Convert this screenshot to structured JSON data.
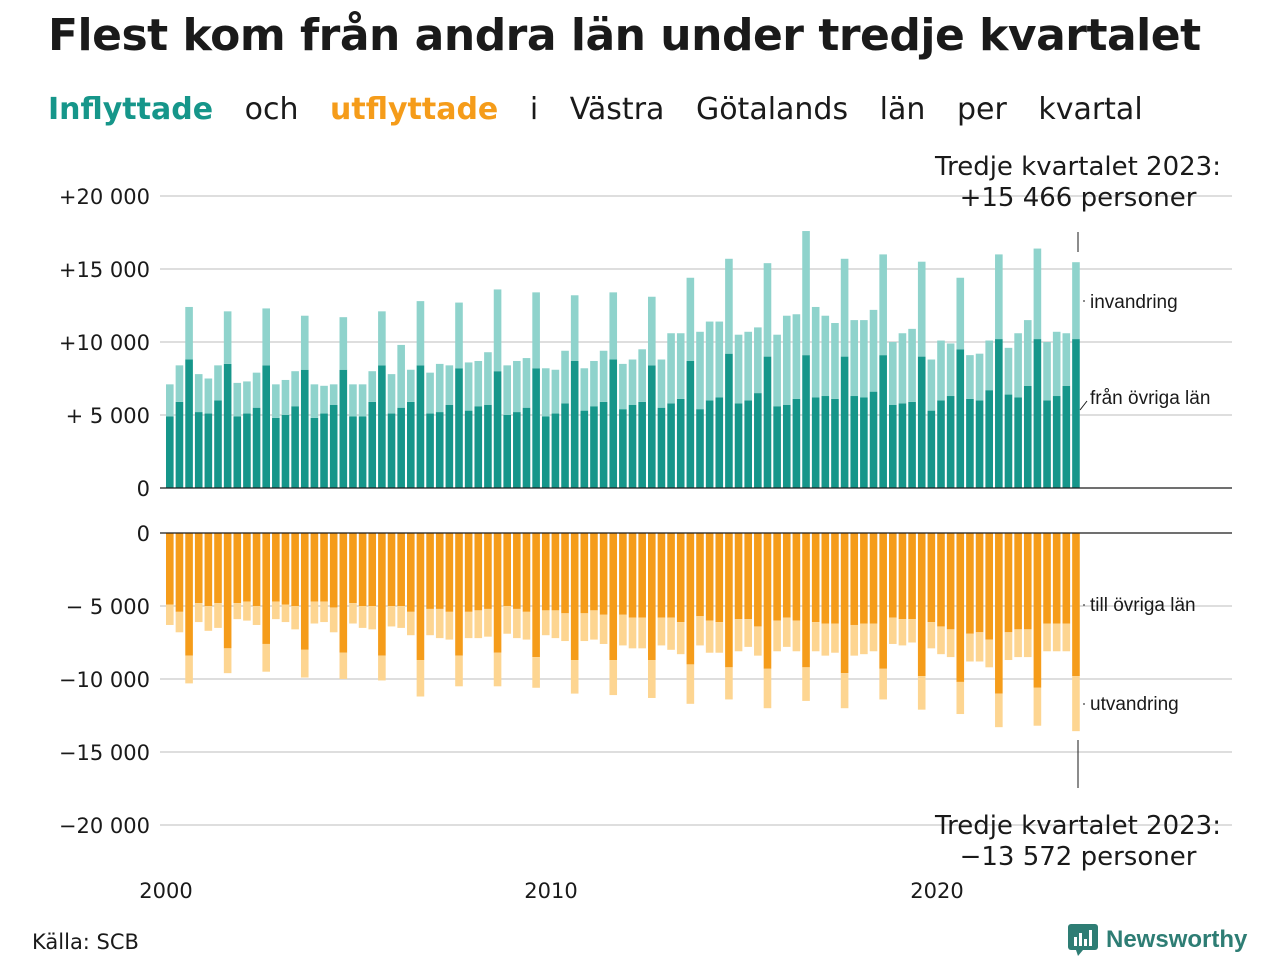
{
  "title": "Flest kom från andra län under tredje kvartalet",
  "subtitle": {
    "in_word": "Inflyttade",
    "mid1": "och",
    "out_word": "utflyttade",
    "rest": [
      "i",
      "Västra",
      "Götalands",
      "län",
      "per",
      "kvartal"
    ]
  },
  "source": "Källa: SCB",
  "brand": "Newsworthy",
  "colors": {
    "in_dark": "#16968a",
    "in_light": "#8fd3cc",
    "out_dark": "#f59c1a",
    "out_light": "#fdd591"
  },
  "annotations": {
    "top_line1": "Tredje kvartalet 2023:",
    "top_line2": "+15 466 personer",
    "bottom_line1": "Tredje kvartalet 2023:",
    "bottom_line2": "−13 572 personer",
    "invandring": "invandring",
    "fran_ovriga_lan": "från övriga län",
    "till_ovriga_lan": "till övriga län",
    "utvandring": "utvandring"
  },
  "chart_data": {
    "type": "bar",
    "x_start": "2000 Q1",
    "x_ticks": [
      "2000",
      "2010",
      "2020"
    ],
    "top": {
      "yticks": [
        "+20 000",
        "+15 000",
        "+10 000",
        "+ 5 000",
        "0"
      ],
      "ylim": [
        0,
        20000
      ],
      "series": [
        {
          "name": "från övriga län",
          "values": [
            4900,
            5900,
            8800,
            5200,
            5100,
            6000,
            8500,
            4900,
            5100,
            5500,
            8400,
            4800,
            5000,
            5600,
            8100,
            4800,
            5100,
            5700,
            8100,
            4900,
            4900,
            5900,
            8400,
            5100,
            5500,
            5900,
            8400,
            5100,
            5200,
            5700,
            8200,
            5300,
            5600,
            5700,
            8000,
            5000,
            5200,
            5500,
            8200,
            4900,
            5100,
            5800,
            8700,
            5300,
            5600,
            5900,
            8800,
            5400,
            5700,
            5900,
            8400,
            5500,
            5800,
            6100,
            8700,
            5400,
            6000,
            6200,
            9200,
            5800,
            6000,
            6500,
            9000,
            5600,
            5700,
            6100,
            9100,
            6200,
            6300,
            6100,
            9000,
            6300,
            6200,
            6600,
            9100,
            5700,
            5800,
            5900,
            9000,
            5300,
            6000,
            6300,
            9500,
            6100,
            6000,
            6700,
            10200,
            6400,
            6200,
            7000,
            10200,
            6000,
            6300,
            7000,
            10200
          ]
        },
        {
          "name": "invandring",
          "values": [
            2200,
            2500,
            3600,
            2600,
            2400,
            2400,
            3600,
            2300,
            2200,
            2400,
            3900,
            2300,
            2400,
            2400,
            3700,
            2300,
            1900,
            1400,
            3600,
            2200,
            2200,
            2100,
            3700,
            2700,
            4300,
            2200,
            4400,
            2800,
            3300,
            2700,
            4500,
            3300,
            3100,
            3600,
            5600,
            3400,
            3500,
            3400,
            5200,
            3300,
            3000,
            3600,
            4500,
            2900,
            3100,
            3500,
            4600,
            3100,
            3100,
            3600,
            4700,
            3300,
            4800,
            4500,
            5700,
            5300,
            5400,
            5200,
            6500,
            4700,
            4700,
            4500,
            6400,
            4900,
            6100,
            5800,
            8500,
            6200,
            5500,
            5200,
            6700,
            5200,
            5300,
            5600,
            6900,
            4300,
            4800,
            5000,
            6500,
            3500,
            4100,
            3600,
            4900,
            3000,
            3200,
            3400,
            5800,
            3200,
            4400,
            4500,
            6200,
            4000,
            4400,
            3600,
            5266
          ]
        }
      ]
    },
    "bottom": {
      "yticks": [
        "0",
        "− 5 000",
        "−10 000",
        "−15 000",
        "−20 000"
      ],
      "ylim": [
        -20000,
        0
      ],
      "series": [
        {
          "name": "till övriga län",
          "values": [
            -4900,
            -5400,
            -8400,
            -4800,
            -5000,
            -4800,
            -7900,
            -4800,
            -4700,
            -5000,
            -7600,
            -4700,
            -4900,
            -5000,
            -8000,
            -4700,
            -4700,
            -5100,
            -8200,
            -4800,
            -5000,
            -5000,
            -8400,
            -5000,
            -5000,
            -5400,
            -8700,
            -5200,
            -5200,
            -5400,
            -8400,
            -5400,
            -5300,
            -5200,
            -8200,
            -5000,
            -5200,
            -5400,
            -8500,
            -5300,
            -5300,
            -5500,
            -8700,
            -5500,
            -5300,
            -5600,
            -8700,
            -5600,
            -5800,
            -5800,
            -8700,
            -5800,
            -5800,
            -6100,
            -9000,
            -5700,
            -6000,
            -6100,
            -9200,
            -5900,
            -5900,
            -6400,
            -9300,
            -6000,
            -5800,
            -6000,
            -9200,
            -6100,
            -6200,
            -6200,
            -9600,
            -6300,
            -6200,
            -6200,
            -9300,
            -5800,
            -5900,
            -5900,
            -9800,
            -6100,
            -6400,
            -6600,
            -10200,
            -6900,
            -6800,
            -7300,
            -11000,
            -6800,
            -6600,
            -6600,
            -10600,
            -6200,
            -6200,
            -6200,
            -9800
          ]
        },
        {
          "name": "utvandring",
          "values": [
            -1400,
            -1400,
            -1900,
            -1300,
            -1700,
            -1700,
            -1700,
            -1100,
            -1300,
            -1300,
            -1900,
            -1200,
            -1200,
            -1600,
            -1900,
            -1500,
            -1400,
            -1700,
            -1800,
            -1400,
            -1500,
            -1600,
            -1700,
            -1400,
            -1500,
            -1600,
            -2500,
            -1800,
            -2000,
            -1900,
            -2100,
            -1800,
            -1900,
            -1900,
            -2300,
            -1900,
            -2000,
            -1900,
            -2100,
            -1700,
            -1900,
            -1900,
            -2300,
            -1900,
            -2000,
            -2000,
            -2400,
            -2100,
            -2100,
            -2100,
            -2600,
            -1900,
            -2200,
            -2200,
            -2700,
            -2000,
            -2200,
            -2100,
            -2200,
            -2200,
            -1900,
            -2000,
            -2700,
            -2100,
            -2000,
            -2100,
            -2300,
            -2000,
            -2200,
            -2000,
            -2400,
            -2100,
            -2100,
            -1900,
            -2100,
            -1800,
            -1800,
            -1600,
            -2300,
            -1800,
            -1900,
            -1900,
            -2200,
            -1900,
            -2000,
            -1900,
            -2300,
            -1900,
            -1900,
            -1900,
            -2600,
            -1900,
            -1900,
            -1900,
            -3772
          ]
        }
      ]
    }
  }
}
